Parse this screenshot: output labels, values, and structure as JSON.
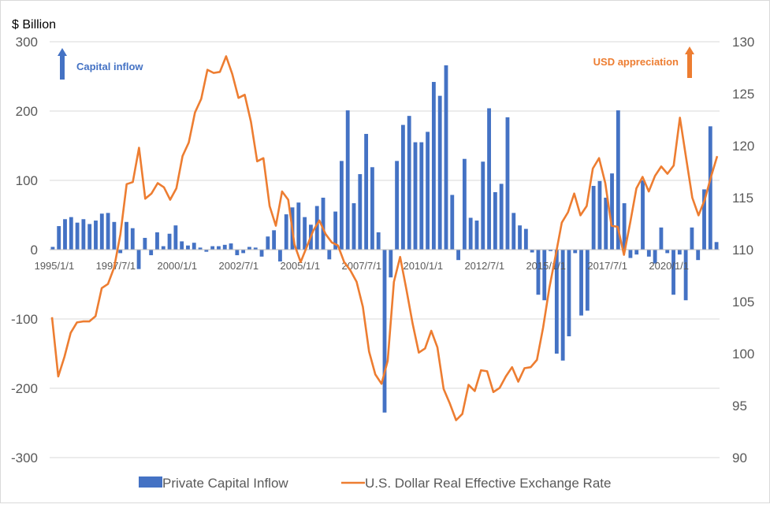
{
  "chart_data": {
    "type": "bar+line",
    "unit_label": "$ Billion",
    "x_tick_labels": [
      "1995/1/1",
      "1997/7/1",
      "2000/1/1",
      "2002/7/1",
      "2005/1/1",
      "2007/7/1",
      "2010/1/1",
      "2012/7/1",
      "2015/1/1",
      "2017/7/1",
      "2020/1/1"
    ],
    "y_left": {
      "ticks": [
        300,
        200,
        100,
        0,
        -100,
        -200,
        -300
      ],
      "range": [
        -300,
        300
      ]
    },
    "y_right": {
      "ticks": [
        130,
        125,
        120,
        115,
        110,
        105,
        100,
        95,
        90
      ],
      "range": [
        90,
        130
      ]
    },
    "legend": {
      "placement": "bottom"
    },
    "annotations": {
      "left": "Capital inflow",
      "right": "USD appreciation"
    },
    "colors": {
      "bar": "#4472C4",
      "line": "#ED7D31"
    },
    "series": [
      {
        "name": "Private Capital Inflow",
        "kind": "bar",
        "axis": "left",
        "values": [
          4,
          34,
          44,
          47,
          39,
          44,
          37,
          42,
          52,
          53,
          40,
          -5,
          40,
          31,
          -28,
          17,
          -8,
          25,
          5,
          23,
          35,
          12,
          6,
          10,
          3,
          -3,
          5,
          5,
          7,
          9,
          -8,
          -5,
          4,
          3,
          -10,
          19,
          28,
          -17,
          51,
          61,
          68,
          47,
          36,
          63,
          75,
          -14,
          55,
          128,
          201,
          67,
          109,
          167,
          119,
          25,
          -235,
          -40,
          128,
          180,
          193,
          155,
          155,
          170,
          242,
          222,
          266,
          79,
          -15,
          131,
          46,
          42,
          127,
          204,
          83,
          95,
          191,
          53,
          35,
          30,
          -4,
          -65,
          -73,
          -2,
          -150,
          -160,
          -125,
          -5,
          -95,
          -88,
          92,
          99,
          75,
          110,
          201,
          67,
          -12,
          -7,
          100,
          -10,
          -20,
          32,
          -5,
          -65,
          -7,
          -73,
          32,
          -15,
          87,
          178,
          11
        ]
      },
      {
        "name": "U.S. Dollar Real Effective Exchange Rate",
        "kind": "line",
        "axis": "right",
        "values": [
          103.5,
          97.8,
          99.7,
          102.0,
          103.0,
          103.1,
          103.1,
          103.6,
          106.3,
          106.7,
          108.3,
          111.5,
          116.3,
          116.5,
          119.8,
          114.9,
          115.4,
          116.4,
          116.0,
          114.8,
          115.9,
          119.0,
          120.3,
          123.2,
          124.5,
          127.3,
          127.0,
          127.1,
          128.6,
          126.9,
          124.6,
          124.9,
          122.3,
          118.5,
          118.8,
          114.2,
          112.3,
          115.6,
          114.8,
          110.5,
          108.8,
          110.3,
          111.8,
          112.8,
          111.5,
          110.7,
          110.4,
          108.8,
          108.0,
          106.9,
          104.5,
          100.2,
          98.0,
          97.1,
          99.3,
          106.9,
          109.3,
          106.2,
          102.9,
          100.1,
          100.5,
          102.2,
          100.6,
          96.6,
          95.2,
          93.6,
          94.2,
          97.0,
          96.4,
          98.4,
          98.3,
          96.3,
          96.7,
          97.8,
          98.7,
          97.3,
          98.6,
          98.7,
          99.4,
          102.5,
          106.3,
          109.4,
          112.6,
          113.6,
          115.4,
          113.3,
          114.2,
          117.8,
          118.8,
          116.4,
          112.3,
          112.2,
          109.5,
          112.6,
          115.9,
          117.0,
          115.6,
          117.1,
          118.0,
          117.3,
          118.1,
          122.7,
          118.8,
          115.0,
          113.3,
          114.8,
          117.0,
          119.0
        ]
      }
    ]
  }
}
